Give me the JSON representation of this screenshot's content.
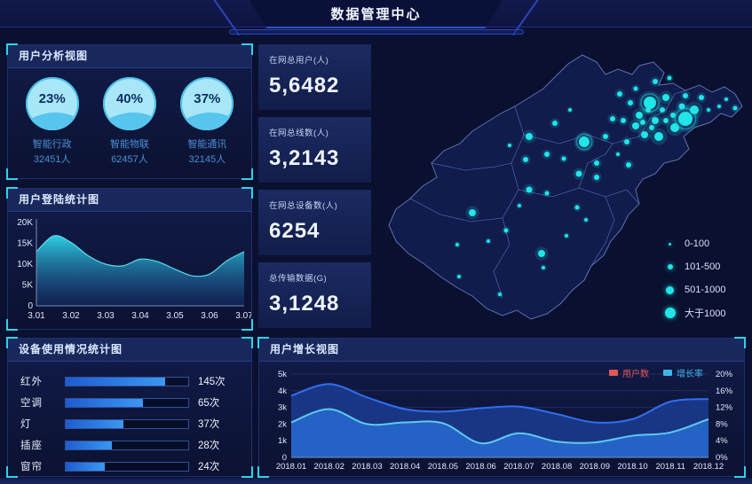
{
  "header": {
    "title": "数据管理中心"
  },
  "panels": {
    "user_analysis": {
      "title": "用户分析视图"
    },
    "login_stats": {
      "title": "用户登陆统计图"
    },
    "device_usage": {
      "title": "设备使用情况统计图"
    },
    "user_growth": {
      "title": "用户增长视图"
    }
  },
  "kpis": [
    {
      "label": "在网总用户(人)",
      "value": "5,6482"
    },
    {
      "label": "在网总线数(人)",
      "value": "3,2143"
    },
    {
      "label": "在网总设备数(人)",
      "value": "6254"
    },
    {
      "label": "总传输数据(G)",
      "value": "3,1248"
    }
  ],
  "colors": {
    "accent_cyan": "#2ad5e9",
    "dot_cyan": "#1ee6e9",
    "bar_blue": "#3c97f2",
    "series_user": "#2f6ff0",
    "series_growth": "#5ec9f2",
    "legend_user_red": "#e25757",
    "legend_growth_cyan": "#3fb6e8"
  },
  "chart_data": [
    {
      "id": "login",
      "type": "area",
      "title": "用户登陆统计图",
      "x_ticks": [
        "3.01",
        "3.02",
        "3.03",
        "3.04",
        "3.05",
        "3.06",
        "3.07"
      ],
      "y_ticks": [
        "0",
        "5K",
        "10K",
        "15K",
        "20K"
      ],
      "ylim": [
        0,
        20
      ],
      "values_k": [
        13.0,
        16.8,
        15.2,
        12.0,
        10.0,
        9.6,
        11.2,
        10.6,
        8.8,
        7.2,
        7.6,
        10.8,
        13.0
      ],
      "note": "values sampled at half-month steps from 3.01 to 3.07"
    },
    {
      "id": "growth",
      "type": "area",
      "title": "用户增长视图",
      "categories": [
        "2018.01",
        "2018.02",
        "2018.03",
        "2018.04",
        "2018.05",
        "2018.06",
        "2018.07",
        "2018.08",
        "2018.09",
        "2018.10",
        "2018.11",
        "2018.12"
      ],
      "left_ticks": [
        "0",
        "1k",
        "2k",
        "3k",
        "4k",
        "5k"
      ],
      "left_lim": [
        0,
        5
      ],
      "right_ticks": [
        "0%",
        "4%",
        "8%",
        "12%",
        "16%",
        "20%"
      ],
      "right_lim": [
        0,
        20
      ],
      "legend": [
        {
          "label": "用户数",
          "color": "#e25757"
        },
        {
          "label": "增长率",
          "color": "#3fb6e8"
        }
      ],
      "series": [
        {
          "name": "用户数",
          "axis": "left",
          "unit": "k",
          "values": [
            3.7,
            4.4,
            3.6,
            2.9,
            2.75,
            2.95,
            3.05,
            2.6,
            2.1,
            2.3,
            3.35,
            3.5
          ]
        },
        {
          "name": "增长率",
          "axis": "right",
          "unit": "%",
          "values": [
            8.4,
            11.6,
            8.0,
            8.4,
            8.2,
            3.4,
            5.8,
            3.8,
            3.6,
            5.2,
            6.0,
            9.2
          ]
        }
      ]
    },
    {
      "id": "device",
      "type": "bar",
      "title": "设备使用情况统计图",
      "orientation": "horizontal",
      "categories": [
        "红外",
        "空调",
        "灯",
        "插座",
        "窗帘"
      ],
      "values": [
        145,
        65,
        37,
        28,
        24
      ],
      "unit": "次",
      "value_labels": [
        "145次",
        "65次",
        "37次",
        "28次",
        "24次"
      ],
      "bar_pct": [
        81,
        63,
        47,
        38,
        32
      ]
    },
    {
      "id": "gauges",
      "type": "gauge",
      "title": "用户分析视图",
      "items": [
        {
          "name": "智能行政",
          "percent": 23,
          "percent_label": "23%",
          "count_label": "32451人"
        },
        {
          "name": "智能物联",
          "percent": 40,
          "percent_label": "40%",
          "count_label": "62457人"
        },
        {
          "name": "智能通讯",
          "percent": 37,
          "percent_label": "37%",
          "count_label": "32145人"
        }
      ]
    },
    {
      "id": "map",
      "type": "scatter-map",
      "legend": [
        "0-100",
        "101-500",
        "501-1000",
        "大于1000"
      ],
      "points": [
        [
          312,
          72,
          7
        ],
        [
          352,
          90,
          8
        ],
        [
          362,
          80,
          5
        ],
        [
          340,
          100,
          5
        ],
        [
          330,
          66,
          4
        ],
        [
          318,
          92,
          4
        ],
        [
          300,
          86,
          4
        ],
        [
          296,
          98,
          4
        ],
        [
          290,
          72,
          3
        ],
        [
          282,
          92,
          3
        ],
        [
          306,
          108,
          4
        ],
        [
          322,
          110,
          5
        ],
        [
          286,
          116,
          3
        ],
        [
          270,
          90,
          3
        ],
        [
          262,
          110,
          3
        ],
        [
          278,
          62,
          3
        ],
        [
          296,
          56,
          2.5
        ],
        [
          318,
          48,
          3
        ],
        [
          334,
          44,
          2.5
        ],
        [
          352,
          64,
          3
        ],
        [
          370,
          66,
          3
        ],
        [
          378,
          80,
          2
        ],
        [
          390,
          76,
          2
        ],
        [
          348,
          76,
          3.5
        ],
        [
          338,
          86,
          3
        ],
        [
          326,
          80,
          3
        ],
        [
          310,
          80,
          3
        ],
        [
          304,
          94,
          3
        ],
        [
          314,
          100,
          3
        ],
        [
          330,
          92,
          3
        ],
        [
          398,
          68,
          2
        ],
        [
          408,
          78,
          2.5
        ],
        [
          238,
          116,
          6
        ],
        [
          205,
          95,
          3
        ],
        [
          222,
          80,
          2
        ],
        [
          196,
          130,
          3
        ],
        [
          215,
          135,
          2.5
        ],
        [
          252,
          140,
          3
        ],
        [
          232,
          152,
          3.5
        ],
        [
          252,
          156,
          3
        ],
        [
          276,
          130,
          2
        ],
        [
          288,
          142,
          3
        ],
        [
          176,
          110,
          4
        ],
        [
          154,
          120,
          2
        ],
        [
          172,
          136,
          3
        ],
        [
          176,
          170,
          3.5
        ],
        [
          196,
          174,
          2.5
        ],
        [
          165,
          188,
          2
        ],
        [
          112,
          196,
          4
        ],
        [
          150,
          216,
          2.5
        ],
        [
          130,
          228,
          2
        ],
        [
          95,
          232,
          2
        ],
        [
          190,
          242,
          4
        ],
        [
          192,
          258,
          2
        ],
        [
          143,
          288,
          2
        ],
        [
          97,
          268,
          2
        ],
        [
          230,
          190,
          2.5
        ],
        [
          240,
          204,
          2
        ],
        [
          218,
          222,
          2
        ]
      ]
    }
  ]
}
